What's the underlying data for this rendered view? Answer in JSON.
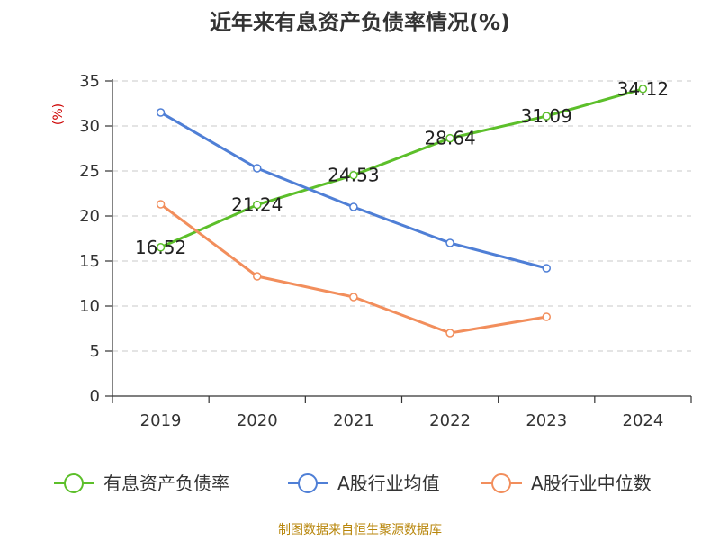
{
  "chart_data": {
    "type": "line",
    "title": "近年来有息资产负债率情况(%)",
    "ylabel": "(%)",
    "xlabel": "",
    "categories": [
      "2019",
      "2020",
      "2021",
      "2022",
      "2023",
      "2024"
    ],
    "ylim": [
      0,
      35
    ],
    "yticks": [
      0,
      5,
      10,
      15,
      20,
      25,
      30,
      35
    ],
    "grid": true,
    "legend_position": "bottom",
    "series": [
      {
        "name": "有息资产负债率",
        "color": "#5cbf2a",
        "values": [
          16.52,
          21.24,
          24.53,
          28.64,
          31.09,
          34.12
        ],
        "labels": [
          "16.52",
          "21.24",
          "24.53",
          "28.64",
          "31.09",
          "34.12"
        ]
      },
      {
        "name": "A股行业均值",
        "color": "#4f7fd6",
        "values": [
          31.5,
          25.3,
          21.0,
          17.0,
          14.2,
          null
        ]
      },
      {
        "name": "A股行业中位数",
        "color": "#f28e5c",
        "values": [
          21.3,
          13.3,
          11.0,
          7.0,
          8.8,
          null
        ]
      }
    ],
    "source": "制图数据来自恒生聚源数据库"
  }
}
